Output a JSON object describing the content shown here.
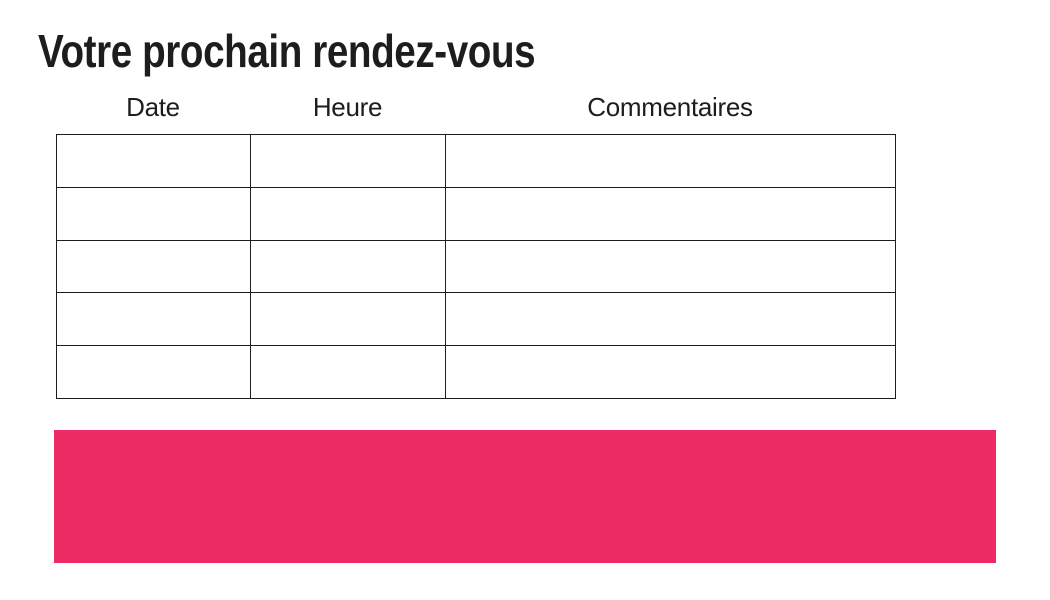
{
  "page": {
    "title": "Votre prochain rendez-vous",
    "background_color": "#ffffff",
    "text_color": "#1d1d1b"
  },
  "table": {
    "headers": [
      "Date",
      "Heure",
      "Commentaires"
    ],
    "rows": [
      [
        "",
        "",
        ""
      ],
      [
        "",
        "",
        ""
      ],
      [
        "",
        "",
        ""
      ],
      [
        "",
        "",
        ""
      ],
      [
        "",
        "",
        ""
      ]
    ],
    "border_color": "#1d1d1b"
  },
  "highlight_bar": {
    "color": "#ed2b65"
  }
}
